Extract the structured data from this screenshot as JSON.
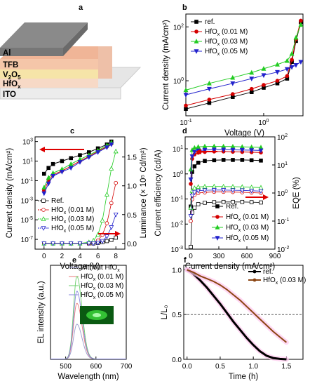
{
  "panel_letters": [
    "a",
    "b",
    "c",
    "d",
    "e",
    "f"
  ],
  "device_stack": {
    "layers": [
      "Al",
      "TFB",
      "V2O5",
      "HfOx",
      "ITO"
    ],
    "colors": [
      "#7a7a7a",
      "#f2b89a",
      "#f3e2a0",
      "#f5d3c4",
      "#e8e8e8"
    ]
  },
  "colors": {
    "ref": "#000000",
    "hf001": "#d40000",
    "hf003": "#22cc22",
    "hf005": "#2222cc",
    "hf003_e": "#6bcf6b",
    "hf005_e": "#8888dd",
    "hf001_e": "#e87a7a",
    "without_e": "#9999cc",
    "pink": "#ffc8ee",
    "brown": "#8b4513",
    "arrow": "#dd0000"
  },
  "chart_data": [
    {
      "id": "b",
      "type": "line",
      "xlabel": "Voltage (V)",
      "ylabel": "Current density (mA/cm²)",
      "xscale": "log",
      "yscale": "log",
      "xlim": [
        0.1,
        3.2
      ],
      "ylim": [
        0.05,
        300
      ],
      "xticks": [
        {
          "v": 0.1,
          "b": "10",
          "e": "-1"
        },
        {
          "v": 1,
          "b": "10",
          "e": "0"
        }
      ],
      "yticks": [
        {
          "v": 1,
          "b": "10",
          "e": "0"
        },
        {
          "v": 100,
          "b": "10",
          "e": "2"
        }
      ],
      "legend": "top-left",
      "series": [
        {
          "name": "ref.",
          "color": "#000000",
          "marker": "square",
          "x": [
            0.1,
            0.2,
            0.4,
            0.7,
            1.0,
            1.5,
            2.0,
            2.3,
            2.6,
            3.0
          ],
          "y": [
            0.09,
            0.15,
            0.25,
            0.38,
            0.55,
            0.8,
            1.2,
            5,
            30,
            150
          ]
        },
        {
          "name": "HfOx (0.01 M)",
          "color": "#d40000",
          "marker": "circle",
          "x": [
            0.1,
            0.2,
            0.4,
            0.7,
            1.0,
            1.5,
            2.0,
            2.3,
            2.6,
            3.0
          ],
          "y": [
            0.12,
            0.2,
            0.32,
            0.5,
            0.7,
            1.0,
            1.5,
            6,
            35,
            170
          ]
        },
        {
          "name": "HfOx (0.03 M)",
          "color": "#22cc22",
          "marker": "triangle",
          "x": [
            0.1,
            0.2,
            0.4,
            0.7,
            1.0,
            1.5,
            2.0,
            2.3,
            2.6,
            3.0
          ],
          "y": [
            0.45,
            0.8,
            1.3,
            2.0,
            2.8,
            4,
            5.5,
            10,
            40,
            120
          ]
        },
        {
          "name": "HfOx (0.05 M)",
          "color": "#2222cc",
          "marker": "triangle-down",
          "x": [
            0.1,
            0.2,
            0.4,
            0.7,
            1.0,
            1.5,
            2.0,
            2.3,
            2.6,
            3.0
          ],
          "y": [
            0.3,
            0.5,
            0.8,
            1.2,
            1.6,
            2.1,
            2.7,
            3.2,
            3.8,
            5
          ]
        }
      ]
    },
    {
      "id": "c",
      "type": "line",
      "xlabel": "Voltage (V)",
      "ylabel": "Current density (mA/cm²)",
      "y2label": "Luminance (× 10⁵ Cd/m²)",
      "yscale": "log",
      "xlim": [
        -1,
        9
      ],
      "ylim": [
        1e-08,
        3000
      ],
      "y2lim": [
        -0.1,
        1.85
      ],
      "xticks": [
        0,
        2,
        4,
        6,
        8
      ],
      "yticks": [
        {
          "v": 1e-07,
          "b": "10",
          "e": "-7"
        },
        {
          "v": 1e-05,
          "b": "10",
          "e": "-5"
        },
        {
          "v": 0.001,
          "b": "10",
          "e": "-3"
        },
        {
          "v": 0.1,
          "b": "10",
          "e": "-1"
        },
        {
          "v": 10,
          "b": "10",
          "e": "1"
        },
        {
          "v": 1000,
          "b": "10",
          "e": "3"
        }
      ],
      "y2ticks": [
        0.0,
        0.5,
        1.0,
        1.5
      ],
      "legend": "bottom-left",
      "series": [
        {
          "name": "Ref.",
          "color": "#000000",
          "marker": "square",
          "x": [
            0,
            0.5,
            1,
            2,
            3,
            4,
            5,
            6,
            7,
            7.5
          ],
          "y": [
            0.5,
            2,
            5,
            10,
            20,
            40,
            80,
            200,
            500,
            1000
          ]
        },
        {
          "name": "HfOx (0.01 M)",
          "color": "#d40000",
          "marker": "circle",
          "x": [
            0,
            0.5,
            1,
            2,
            3,
            4,
            5,
            6,
            7,
            7.5
          ],
          "y": [
            0.01,
            0.1,
            0.4,
            1,
            3,
            10,
            30,
            100,
            300,
            600
          ]
        },
        {
          "name": "HfOx (0.03 M)",
          "color": "#22cc22",
          "marker": "triangle",
          "x": [
            0,
            0.5,
            1,
            2,
            3,
            4,
            5,
            6,
            7,
            7.5
          ],
          "y": [
            0.02,
            0.2,
            0.6,
            1.5,
            5,
            15,
            40,
            120,
            400,
            800
          ]
        },
        {
          "name": "HfOx (0.05 M)",
          "color": "#2222cc",
          "marker": "triangle-down",
          "x": [
            0,
            0.5,
            1,
            2,
            3,
            4,
            5,
            6,
            7,
            7.5
          ],
          "y": [
            0.005,
            0.05,
            0.3,
            0.8,
            2,
            8,
            25,
            80,
            250,
            500
          ]
        }
      ],
      "luminance_series": [
        {
          "color": "#000000",
          "x": [
            0,
            1,
            2,
            3,
            4,
            5,
            5.5,
            6,
            6.5,
            7,
            7.5,
            8
          ],
          "y": [
            0,
            0,
            0,
            0,
            0,
            0,
            0,
            0.01,
            0.02,
            0.04,
            0.06,
            0.1
          ]
        },
        {
          "color": "#d40000",
          "x": [
            0,
            1,
            2,
            3,
            4,
            5,
            5.5,
            6,
            6.5,
            7,
            7.5,
            8
          ],
          "y": [
            0,
            0,
            0,
            0,
            0,
            0,
            0.02,
            0.05,
            0.15,
            0.35,
            0.7,
            1.05
          ]
        },
        {
          "color": "#22cc22",
          "x": [
            0,
            1,
            2,
            3,
            4,
            5,
            5.5,
            6,
            6.5,
            7,
            7.5,
            8
          ],
          "y": [
            0,
            0,
            0,
            0,
            0,
            0.02,
            0.05,
            0.15,
            0.4,
            0.85,
            1.3,
            1.6
          ]
        },
        {
          "color": "#2222cc",
          "x": [
            0,
            1,
            2,
            3,
            4,
            5,
            5.5,
            6,
            6.5,
            7,
            7.5,
            8
          ],
          "y": [
            0,
            0,
            0,
            0,
            0,
            0,
            0,
            0.01,
            0.04,
            0.12,
            0.28,
            0.5
          ]
        }
      ]
    },
    {
      "id": "d",
      "type": "line",
      "xlabel": "Current density (mA/cm²)",
      "ylabel": "Current efficiency (cd/A)",
      "y2label": "EQE (%)",
      "yscale": "log",
      "y2scale": "log",
      "xlim": [
        -60,
        900
      ],
      "ylim": [
        0.001,
        30
      ],
      "y2lim": [
        0.01,
        100
      ],
      "xticks": [
        0,
        300,
        600,
        900
      ],
      "yticks": [
        {
          "v": 0.001,
          "b": "10",
          "e": "-3"
        },
        {
          "v": 0.01,
          "b": "10",
          "e": "-2"
        },
        {
          "v": 0.1,
          "b": "10",
          "e": "-1"
        },
        {
          "v": 1,
          "b": "10",
          "e": "0"
        },
        {
          "v": 10,
          "b": "10",
          "e": "1"
        }
      ],
      "y2ticks": [
        {
          "v": 0.01,
          "b": "10",
          "e": "-2"
        },
        {
          "v": 0.1,
          "b": "10",
          "e": "-1"
        },
        {
          "v": 1,
          "b": "10",
          "e": "0"
        },
        {
          "v": 10,
          "b": "10",
          "e": "1"
        },
        {
          "v": 100,
          "b": "10",
          "e": "2"
        }
      ],
      "legend": "bottom-right",
      "series": [
        {
          "name": "Ref.",
          "color": "#000000",
          "marker": "square",
          "x": [
            0,
            15,
            40,
            80,
            150,
            250,
            350,
            450,
            550,
            650,
            750
          ],
          "y": [
            0.05,
            1.2,
            2.0,
            2.8,
            3.3,
            3.5,
            3.6,
            3.6,
            3.6,
            3.5,
            3.4
          ]
        },
        {
          "name": "HfOx (0.01 M)",
          "color": "#d40000",
          "marker": "circle",
          "x": [
            0,
            15,
            40,
            80,
            150,
            250,
            350,
            450,
            550,
            650,
            750
          ],
          "y": [
            0.4,
            4,
            6,
            7,
            7.5,
            7.8,
            7.8,
            7.6,
            7.5,
            7.3,
            7.1
          ]
        },
        {
          "name": "HfOx (0.03 M)",
          "color": "#22cc22",
          "marker": "triangle",
          "x": [
            0,
            15,
            40,
            80,
            150,
            250,
            350,
            450,
            550,
            650,
            750
          ],
          "y": [
            1.5,
            9,
            11,
            12,
            12.5,
            12.6,
            12.5,
            12.3,
            12,
            11.7,
            11.4
          ]
        },
        {
          "name": "HfOx (0.05 M)",
          "color": "#2222cc",
          "marker": "triangle-down",
          "x": [
            0,
            15,
            40,
            80,
            150,
            250,
            350,
            450,
            550,
            650,
            750
          ],
          "y": [
            0.6,
            5,
            7.5,
            8.5,
            9,
            9.2,
            9.2,
            9.1,
            9,
            8.8,
            8.6
          ]
        }
      ],
      "eqe_series": [
        {
          "color": "#000000",
          "x": [
            0,
            15,
            40,
            80,
            150,
            250,
            350,
            450,
            550,
            650,
            750
          ],
          "y": [
            0.012,
            0.2,
            0.3,
            0.4,
            0.45,
            0.47,
            0.48,
            0.48,
            0.48,
            0.47,
            0.46
          ]
        },
        {
          "color": "#d40000",
          "x": [
            0,
            15,
            40,
            80,
            150,
            250,
            350,
            450,
            550,
            650,
            750
          ],
          "y": [
            0.1,
            0.6,
            0.85,
            1.0,
            1.05,
            1.1,
            1.1,
            1.08,
            1.06,
            1.03,
            1.0
          ]
        },
        {
          "color": "#22cc22",
          "x": [
            0,
            15,
            40,
            80,
            150,
            250,
            350,
            450,
            550,
            650,
            750
          ],
          "y": [
            0.3,
            1.2,
            1.5,
            1.65,
            1.7,
            1.72,
            1.7,
            1.68,
            1.65,
            1.6,
            1.56
          ]
        },
        {
          "color": "#2222cc",
          "x": [
            0,
            15,
            40,
            80,
            150,
            250,
            350,
            450,
            550,
            650,
            750
          ],
          "y": [
            0.15,
            0.8,
            1.05,
            1.2,
            1.25,
            1.27,
            1.27,
            1.25,
            1.24,
            1.2,
            1.17
          ]
        }
      ]
    },
    {
      "id": "e",
      "type": "line",
      "xlabel": "Wavelength (nm)",
      "ylabel": "EL intensity (a.u.)",
      "xlim": [
        450,
        700
      ],
      "ylim": [
        0,
        1.08
      ],
      "xticks": [
        500,
        600,
        700
      ],
      "legend": "top-right",
      "series": [
        {
          "name": "without HfOx",
          "color": "#9999cc",
          "peak": 537,
          "height": 0.4
        },
        {
          "name": "HfOx (0.01 M)",
          "color": "#e87a7a",
          "peak": 537,
          "height": 0.64
        },
        {
          "name": "HfOx (0.03 M)",
          "color": "#6bcf6b",
          "peak": 537,
          "height": 0.95
        },
        {
          "name": "HfOx (0.05 M)",
          "color": "#8888dd",
          "peak": 537,
          "height": 0.78
        }
      ]
    },
    {
      "id": "f",
      "type": "line",
      "xlabel": "Time (h)",
      "ylabel": "L/L₀",
      "xlim": [
        -0.05,
        1.75
      ],
      "ylim": [
        0,
        1.05
      ],
      "xticks": [
        0.0,
        0.5,
        1.0,
        1.5
      ],
      "yticks": [
        0.0,
        0.5,
        1.0
      ],
      "hline": 0.5,
      "legend": "top-right",
      "series": [
        {
          "name": "ref.",
          "color": "#000000",
          "x": [
            0,
            0.05,
            0.1,
            0.2,
            0.3,
            0.4,
            0.5,
            0.6,
            0.7,
            0.8,
            0.9,
            1.0,
            1.1,
            1.2,
            1.3,
            1.4,
            1.5
          ],
          "y": [
            1.0,
            0.98,
            0.95,
            0.88,
            0.8,
            0.71,
            0.62,
            0.52,
            0.42,
            0.33,
            0.24,
            0.16,
            0.09,
            0.04,
            0.015,
            0.005,
            0.0
          ]
        },
        {
          "name": "HfOx (0.03 M)",
          "color": "#8b4513",
          "x": [
            0,
            0.1,
            0.2,
            0.3,
            0.4,
            0.5,
            0.6,
            0.7,
            0.8,
            0.9,
            1.0,
            1.1,
            1.2,
            1.3,
            1.4,
            1.5
          ],
          "y": [
            1.0,
            0.97,
            0.93,
            0.9,
            0.87,
            0.83,
            0.78,
            0.72,
            0.66,
            0.59,
            0.52,
            0.45,
            0.38,
            0.31,
            0.25,
            0.19
          ]
        }
      ]
    }
  ]
}
